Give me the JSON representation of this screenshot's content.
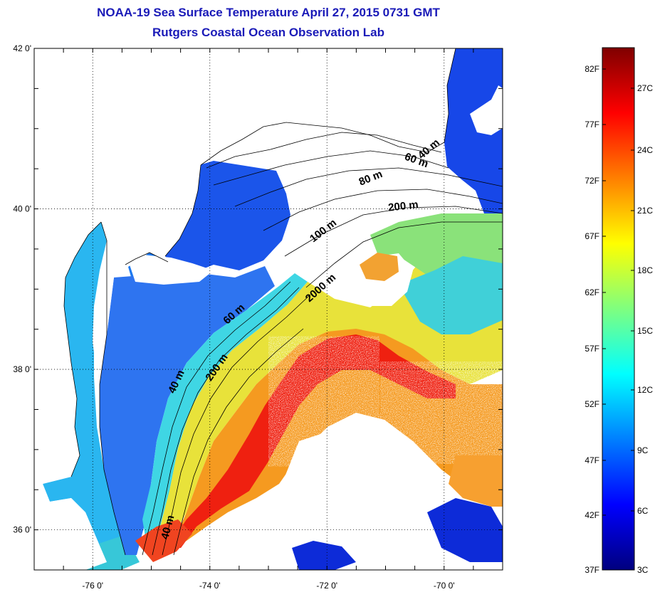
{
  "title": "NOAA-19 Sea Surface Temperature April 27, 2015 0731 GMT",
  "subtitle": "Rutgers Coastal Ocean Observation Lab",
  "map": {
    "lon_range": [
      -77,
      -69
    ],
    "lat_range": [
      35.5,
      42
    ],
    "lon_ticks": [
      {
        "value": -76,
        "label": "-76 0'"
      },
      {
        "value": -74,
        "label": "-74 0'"
      },
      {
        "value": -72,
        "label": "-72 0'"
      },
      {
        "value": -70,
        "label": "-70 0'"
      }
    ],
    "lat_ticks": [
      {
        "value": 42,
        "label": "42 0'"
      },
      {
        "value": 40,
        "label": "40 0'"
      },
      {
        "value": 38,
        "label": "38 0'"
      },
      {
        "value": 36,
        "label": "36 0'"
      }
    ],
    "grid": "dotted",
    "contour_labels": [
      "40 m",
      "60 m",
      "80 m",
      "100 m",
      "200 m",
      "2000 m",
      "60 m",
      "200 m",
      "40 m",
      "40 m"
    ],
    "land_color": "#ffffff",
    "cloud_color": "#ffffff"
  },
  "colorbar": {
    "colors": [
      "#00007f",
      "#0000ff",
      "#007fff",
      "#00ffff",
      "#7fff7f",
      "#ffff00",
      "#ff7f00",
      "#ff0000",
      "#7f0000"
    ],
    "fahrenheit_labels": [
      "82F",
      "77F",
      "72F",
      "67F",
      "62F",
      "57F",
      "52F",
      "47F",
      "42F",
      "37F"
    ],
    "celsius_labels": [
      "27C",
      "24C",
      "21C",
      "18C",
      "15C",
      "12C",
      "9C",
      "6C",
      "3C"
    ]
  }
}
